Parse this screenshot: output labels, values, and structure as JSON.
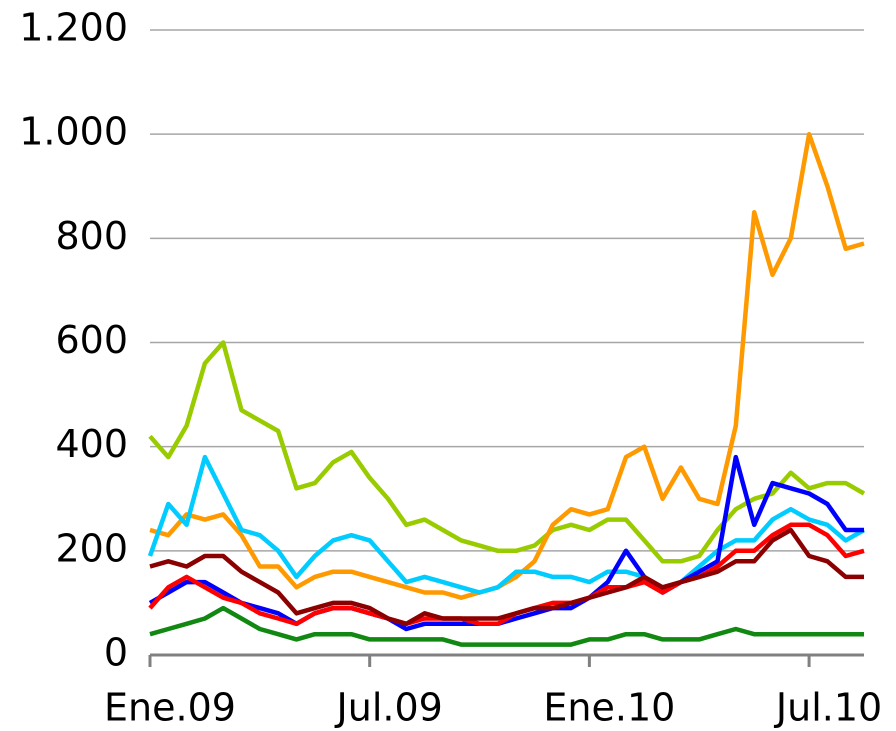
{
  "chart_data": {
    "type": "line",
    "categories": [
      "Ene.09",
      null,
      null,
      null,
      null,
      null,
      null,
      null,
      null,
      null,
      null,
      null,
      "Jul.09",
      null,
      null,
      null,
      null,
      null,
      null,
      null,
      null,
      null,
      null,
      null,
      "Ene.10",
      null,
      null,
      null,
      null,
      null,
      null,
      null,
      null,
      null,
      null,
      null,
      "Jul.10",
      null,
      null,
      null
    ],
    "series": [
      {
        "color": "#99cc00",
        "values": [
          420,
          380,
          440,
          560,
          600,
          470,
          450,
          430,
          320,
          330,
          370,
          390,
          340,
          300,
          250,
          260,
          240,
          220,
          210,
          200,
          200,
          210,
          240,
          250,
          240,
          260,
          260,
          220,
          180,
          180,
          190,
          240,
          280,
          300,
          310,
          350,
          320,
          330,
          330,
          310
        ]
      },
      {
        "color": "#ff9900",
        "values": [
          240,
          230,
          270,
          260,
          270,
          230,
          170,
          170,
          130,
          150,
          160,
          160,
          150,
          140,
          130,
          120,
          120,
          110,
          120,
          130,
          150,
          180,
          250,
          280,
          270,
          280,
          380,
          400,
          300,
          360,
          300,
          290,
          440,
          850,
          730,
          800,
          1000,
          900,
          780,
          790
        ]
      },
      {
        "color": "#00ccff",
        "values": [
          190,
          290,
          250,
          380,
          310,
          240,
          230,
          200,
          150,
          190,
          220,
          230,
          220,
          180,
          140,
          150,
          140,
          130,
          120,
          130,
          160,
          160,
          150,
          150,
          140,
          160,
          160,
          150,
          120,
          140,
          170,
          200,
          220,
          220,
          260,
          280,
          260,
          250,
          220,
          240
        ]
      },
      {
        "color": "#0000ff",
        "values": [
          100,
          120,
          140,
          140,
          120,
          100,
          90,
          80,
          60,
          80,
          90,
          90,
          80,
          70,
          50,
          60,
          60,
          60,
          60,
          60,
          70,
          80,
          90,
          90,
          110,
          140,
          200,
          150,
          120,
          140,
          160,
          180,
          380,
          250,
          330,
          320,
          310,
          290,
          240,
          240
        ]
      },
      {
        "color": "#ff0000",
        "values": [
          90,
          130,
          150,
          130,
          110,
          100,
          80,
          70,
          60,
          80,
          90,
          90,
          80,
          70,
          60,
          70,
          70,
          70,
          60,
          60,
          80,
          90,
          100,
          100,
          110,
          130,
          130,
          140,
          120,
          140,
          150,
          170,
          200,
          200,
          230,
          250,
          250,
          230,
          190,
          200
        ]
      },
      {
        "color": "#8b0000",
        "values": [
          170,
          180,
          170,
          190,
          190,
          160,
          140,
          120,
          80,
          90,
          100,
          100,
          90,
          70,
          60,
          80,
          70,
          70,
          70,
          70,
          80,
          90,
          90,
          100,
          110,
          120,
          130,
          150,
          130,
          140,
          150,
          160,
          180,
          180,
          220,
          240,
          190,
          180,
          150,
          150
        ]
      },
      {
        "color": "#118811",
        "values": [
          40,
          50,
          60,
          70,
          90,
          70,
          50,
          40,
          30,
          40,
          40,
          40,
          30,
          30,
          30,
          30,
          30,
          20,
          20,
          20,
          20,
          20,
          20,
          20,
          30,
          30,
          40,
          40,
          30,
          30,
          30,
          40,
          50,
          40,
          40,
          40,
          40,
          40,
          40,
          40
        ]
      }
    ],
    "ylim": [
      0,
      1200
    ],
    "yticks": [
      0,
      200,
      400,
      600,
      800,
      {
        "value": 1000,
        "label": "1.000"
      },
      {
        "value": 1200,
        "label": "1.200"
      }
    ],
    "grid": true
  }
}
